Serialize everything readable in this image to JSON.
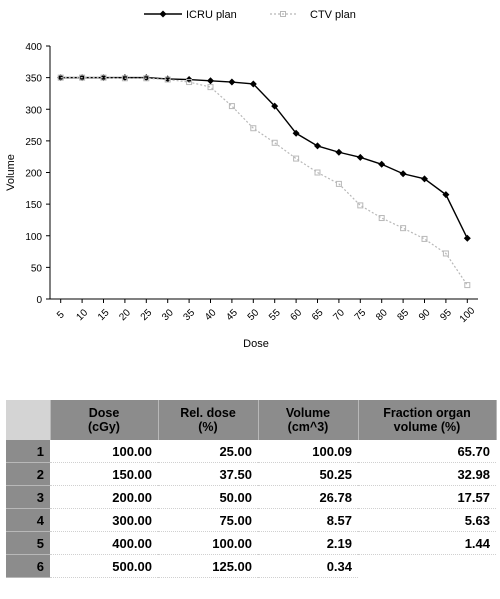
{
  "chart_data": {
    "type": "line",
    "xlabel": "Dose",
    "ylabel": "Volume",
    "x": [
      5,
      10,
      15,
      20,
      25,
      30,
      35,
      40,
      45,
      50,
      55,
      60,
      65,
      70,
      75,
      80,
      85,
      90,
      95,
      100
    ],
    "ylim": [
      0,
      400
    ],
    "yticks": [
      0,
      50,
      100,
      150,
      200,
      250,
      300,
      350,
      400
    ],
    "legend_position": "top-center",
    "series": [
      {
        "name": "ICRU plan",
        "color": "#000000",
        "marker": "diamond",
        "values": [
          350,
          350,
          350,
          350,
          350,
          348,
          347,
          345,
          343,
          340,
          305,
          262,
          242,
          232,
          224,
          213,
          198,
          190,
          165,
          96
        ]
      },
      {
        "name": "CTV plan",
        "color": "#b8b8b8",
        "marker": "square",
        "values": [
          350,
          350,
          350,
          349,
          349,
          347,
          343,
          335,
          305,
          270,
          247,
          222,
          200,
          182,
          148,
          128,
          112,
          95,
          72,
          22
        ]
      }
    ]
  },
  "table": {
    "headers": [
      [
        "Dose",
        "(cGy)"
      ],
      [
        "Rel. dose",
        "(%)"
      ],
      [
        "Volume",
        "(cm^3)"
      ],
      [
        "Fraction organ",
        "volume (%)"
      ]
    ],
    "rows": [
      {
        "idx": "1",
        "cells": [
          "100.00",
          "25.00",
          "100.09",
          "65.70"
        ]
      },
      {
        "idx": "2",
        "cells": [
          "150.00",
          "37.50",
          "50.25",
          "32.98"
        ]
      },
      {
        "idx": "3",
        "cells": [
          "200.00",
          "50.00",
          "26.78",
          "17.57"
        ]
      },
      {
        "idx": "4",
        "cells": [
          "300.00",
          "75.00",
          "8.57",
          "5.63"
        ]
      },
      {
        "idx": "5",
        "cells": [
          "400.00",
          "100.00",
          "2.19",
          "1.44"
        ]
      },
      {
        "idx": "6",
        "cells": [
          "500.00",
          "125.00",
          "0.34",
          ""
        ]
      }
    ]
  }
}
